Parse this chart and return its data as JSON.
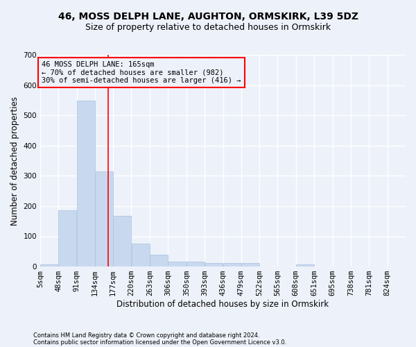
{
  "title_line1": "46, MOSS DELPH LANE, AUGHTON, ORMSKIRK, L39 5DZ",
  "title_line2": "Size of property relative to detached houses in Ormskirk",
  "xlabel": "Distribution of detached houses by size in Ormskirk",
  "ylabel": "Number of detached properties",
  "footer_line1": "Contains HM Land Registry data © Crown copyright and database right 2024.",
  "footer_line2": "Contains public sector information licensed under the Open Government Licence v3.0.",
  "annotation_line1": "46 MOSS DELPH LANE: 165sqm",
  "annotation_line2": "← 70% of detached houses are smaller (982)",
  "annotation_line3": "30% of semi-detached houses are larger (416) →",
  "bar_edges": [
    5,
    48,
    91,
    134,
    177,
    220,
    263,
    306,
    350,
    393,
    436,
    479,
    522,
    565,
    608,
    651,
    695,
    738,
    781,
    824,
    867
  ],
  "bar_values": [
    8,
    185,
    548,
    315,
    168,
    77,
    40,
    17,
    16,
    11,
    12,
    11,
    0,
    0,
    7,
    0,
    0,
    0,
    0,
    0
  ],
  "bar_color": "#c8d9ef",
  "bar_edge_color": "#a8c0e0",
  "property_line_x": 165,
  "property_line_color": "red",
  "annotation_box_color": "red",
  "background_color": "#edf1f9",
  "ylim": [
    0,
    700
  ],
  "yticks": [
    0,
    100,
    200,
    300,
    400,
    500,
    600,
    700
  ],
  "grid_color": "#ffffff",
  "title_fontsize": 10,
  "subtitle_fontsize": 9,
  "axis_label_fontsize": 8.5,
  "tick_fontsize": 7.5,
  "annotation_fontsize": 7.5,
  "footer_fontsize": 6.0
}
